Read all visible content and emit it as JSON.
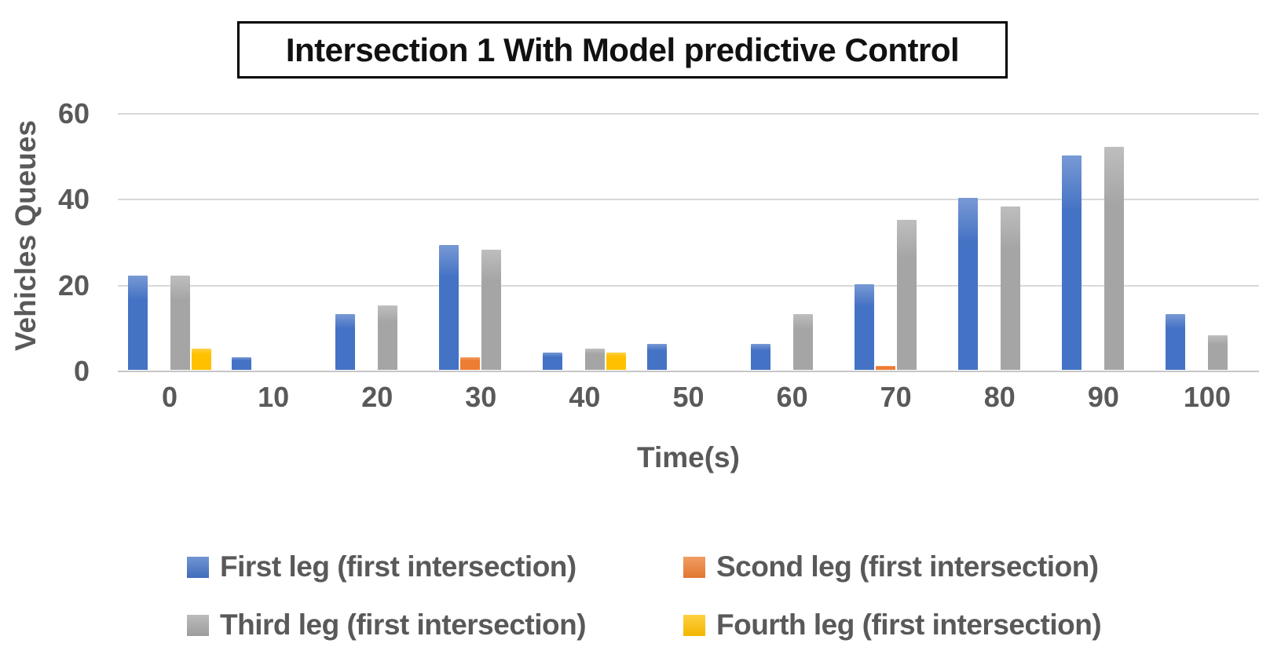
{
  "chart_data": {
    "type": "bar",
    "title": "Intersection 1 With Model predictive Control",
    "xlabel": "Time(s)",
    "ylabel": "Vehicles Queues",
    "categories": [
      "0",
      "10",
      "20",
      "30",
      "40",
      "50",
      "60",
      "70",
      "80",
      "90",
      "100"
    ],
    "series": [
      {
        "name": "First leg (first intersection)",
        "color": "#4472c4",
        "values": [
          22,
          3,
          13,
          29,
          4,
          6,
          6,
          20,
          40,
          50,
          13
        ]
      },
      {
        "name": "Scond leg (first intersection)",
        "color": "#ed7d31",
        "values": [
          0,
          0,
          0,
          3,
          0,
          0,
          0,
          1,
          0,
          0,
          0
        ]
      },
      {
        "name": "Third leg (first intersection)",
        "color": "#a5a5a5",
        "values": [
          22,
          0,
          15,
          28,
          5,
          0,
          13,
          35,
          38,
          52,
          8
        ]
      },
      {
        "name": "Fourth leg (first intersection)",
        "color": "#ffc000",
        "values": [
          5,
          0,
          0,
          0,
          4,
          0,
          0,
          0,
          0,
          0,
          0
        ]
      }
    ],
    "ylim": [
      0,
      60
    ],
    "yticks": [
      0,
      20,
      40,
      60
    ],
    "grid": true,
    "legend_position": "bottom",
    "colors": {
      "gridline": "#d9d9d9",
      "axis_text": "#595959",
      "title_text": "#111111"
    }
  }
}
